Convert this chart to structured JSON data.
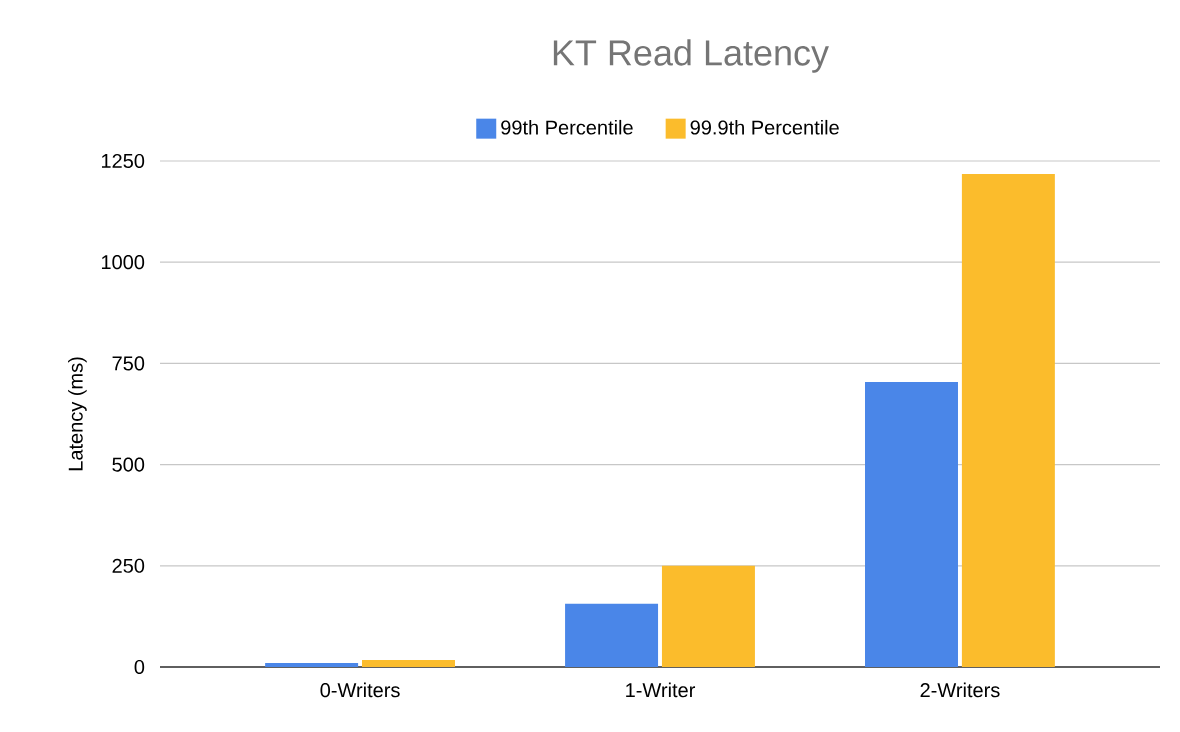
{
  "chart_data": {
    "type": "bar",
    "title": "KT Read Latency",
    "ylabel": "Latency (ms)",
    "categories": [
      "0-Writers",
      "1-Writer",
      "2-Writers"
    ],
    "series": [
      {
        "name": "99th Percentile",
        "color": "#4a86e8",
        "values": [
          10,
          156,
          704
        ]
      },
      {
        "name": "99.9th Percentile",
        "color": "#fbbc2c",
        "values": [
          17,
          250,
          1218
        ]
      }
    ],
    "ylim": [
      0,
      1250
    ],
    "yticks": [
      0,
      250,
      500,
      750,
      1000,
      1250
    ],
    "grid": "y",
    "legend": "top"
  }
}
